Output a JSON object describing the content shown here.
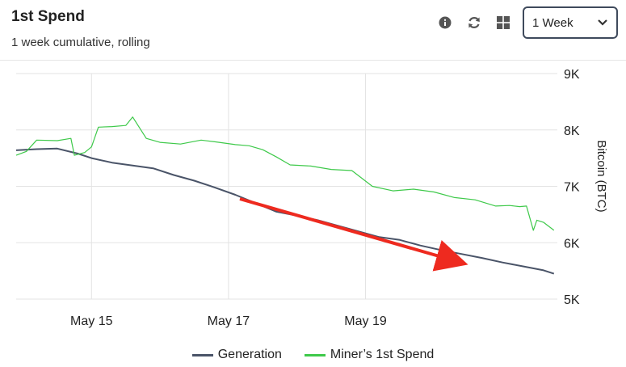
{
  "header": {
    "title": "1st Spend",
    "subtitle": "1 week cumulative, rolling",
    "range_select": {
      "value": "1 Week"
    }
  },
  "icons": {
    "info": "info-icon",
    "refresh": "refresh-icon",
    "grid": "grid-icon",
    "dropdown": "chevron-down-icon"
  },
  "chart_data": {
    "type": "line",
    "ylabel": "Bitcoin (BTC)",
    "ylim": [
      5000,
      9000
    ],
    "yticks": [
      5000,
      6000,
      7000,
      8000,
      9000
    ],
    "ytick_labels": [
      "5K",
      "6K",
      "7K",
      "8K",
      "9K"
    ],
    "xlim": [
      13.9,
      21.8
    ],
    "xticks": [
      15,
      17,
      19
    ],
    "xtick_labels": [
      "May 15",
      "May 17",
      "May 19"
    ],
    "grid": true,
    "legend_position": "bottom",
    "series": [
      {
        "name": "Generation",
        "color": "#4a5468",
        "x": [
          13.9,
          14.2,
          14.5,
          14.8,
          15.0,
          15.3,
          15.6,
          15.9,
          16.2,
          16.5,
          16.8,
          17.1,
          17.4,
          17.7,
          18.0,
          18.3,
          18.6,
          18.9,
          19.2,
          19.5,
          19.8,
          20.1,
          20.4,
          20.7,
          21.0,
          21.3,
          21.6,
          21.75
        ],
        "values": [
          7640,
          7660,
          7670,
          7580,
          7500,
          7420,
          7370,
          7320,
          7200,
          7100,
          6980,
          6850,
          6700,
          6550,
          6480,
          6400,
          6300,
          6200,
          6100,
          6050,
          5950,
          5870,
          5800,
          5730,
          5650,
          5580,
          5510,
          5450
        ]
      },
      {
        "name": "Miner’s 1st Spend",
        "color": "#3ec94a",
        "x": [
          13.9,
          14.05,
          14.2,
          14.5,
          14.7,
          14.75,
          14.9,
          15.0,
          15.1,
          15.3,
          15.5,
          15.6,
          15.8,
          16.0,
          16.3,
          16.6,
          16.8,
          17.1,
          17.3,
          17.5,
          17.7,
          17.9,
          18.2,
          18.5,
          18.8,
          19.1,
          19.4,
          19.7,
          20.0,
          20.3,
          20.6,
          20.9,
          21.1,
          21.25,
          21.35,
          21.45,
          21.5,
          21.6,
          21.75
        ],
        "values": [
          7550,
          7620,
          7820,
          7810,
          7850,
          7550,
          7600,
          7700,
          8050,
          8060,
          8080,
          8230,
          7850,
          7780,
          7750,
          7820,
          7790,
          7740,
          7720,
          7650,
          7520,
          7380,
          7360,
          7300,
          7280,
          7000,
          6920,
          6950,
          6900,
          6800,
          6760,
          6650,
          6660,
          6640,
          6650,
          6220,
          6400,
          6360,
          6220
        ]
      }
    ]
  }
}
